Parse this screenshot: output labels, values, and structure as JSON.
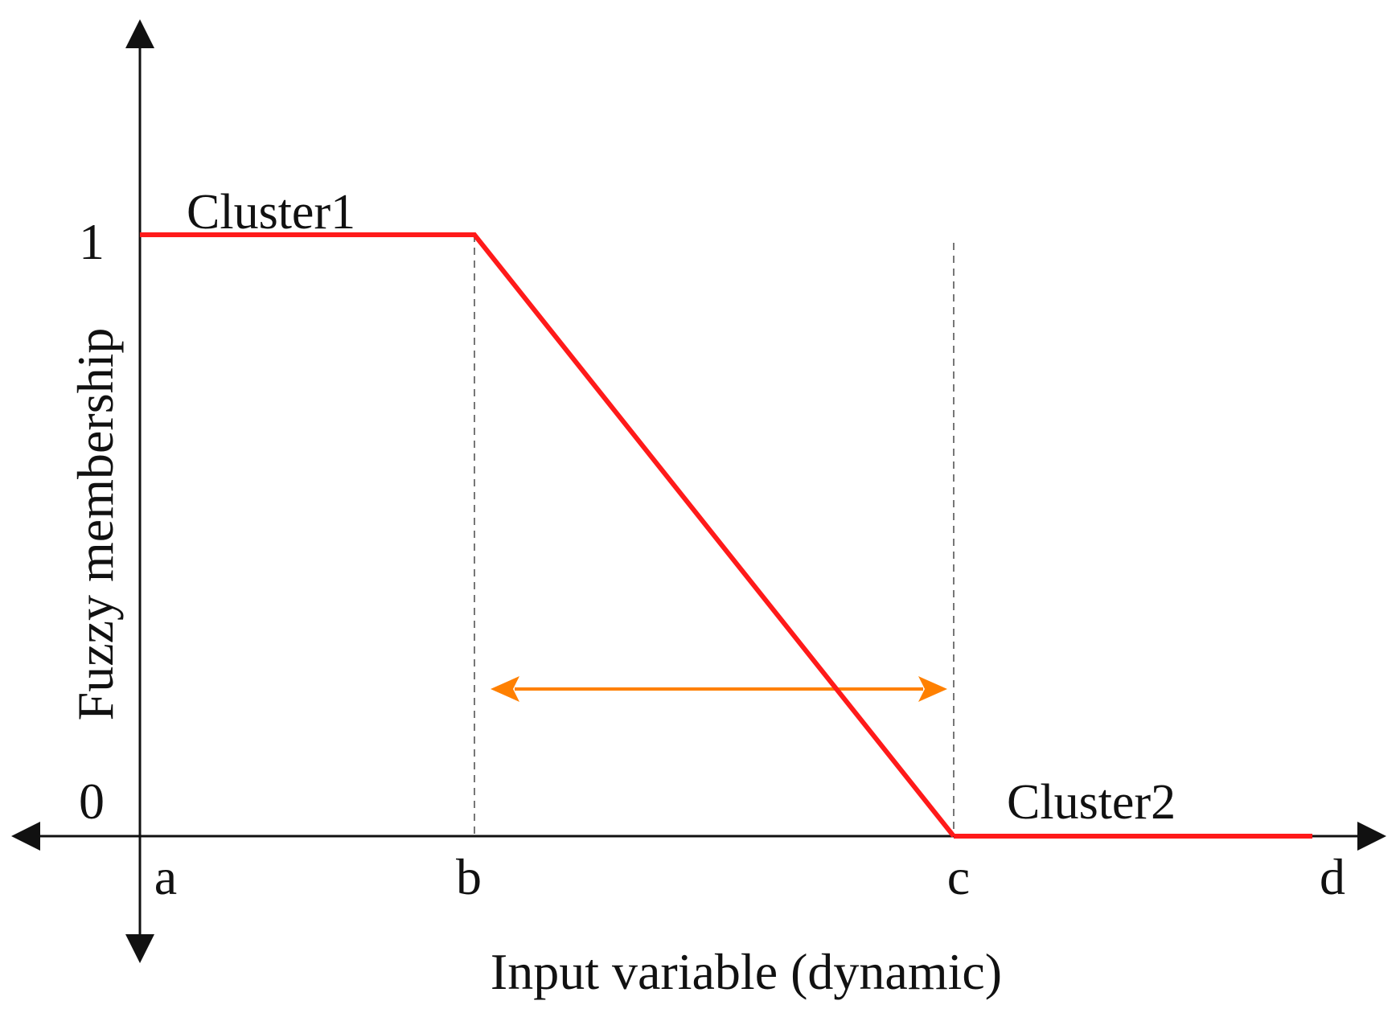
{
  "chart_data": {
    "type": "line",
    "xlabel": "Input variable (dynamic)",
    "ylabel": "Fuzzy membership",
    "x_ticks": [
      "a",
      "b",
      "c",
      "d"
    ],
    "y_ticks": [
      "0",
      "1"
    ],
    "series": [
      {
        "name": "Cluster1",
        "points": [
          [
            "a",
            1
          ],
          [
            "b",
            1
          ],
          [
            "c",
            0
          ]
        ],
        "color": "#ff1a1a"
      },
      {
        "name": "Cluster2",
        "points": [
          [
            "c",
            0
          ],
          [
            "d",
            0
          ]
        ],
        "color": "#ff1a1a"
      }
    ],
    "guides": [
      {
        "at": "b",
        "style": "dashed"
      },
      {
        "at": "c",
        "style": "dashed"
      }
    ],
    "span_arrow": {
      "from": "b",
      "to": "c",
      "color": "#ff8000"
    },
    "grid": false,
    "legend": "none"
  }
}
